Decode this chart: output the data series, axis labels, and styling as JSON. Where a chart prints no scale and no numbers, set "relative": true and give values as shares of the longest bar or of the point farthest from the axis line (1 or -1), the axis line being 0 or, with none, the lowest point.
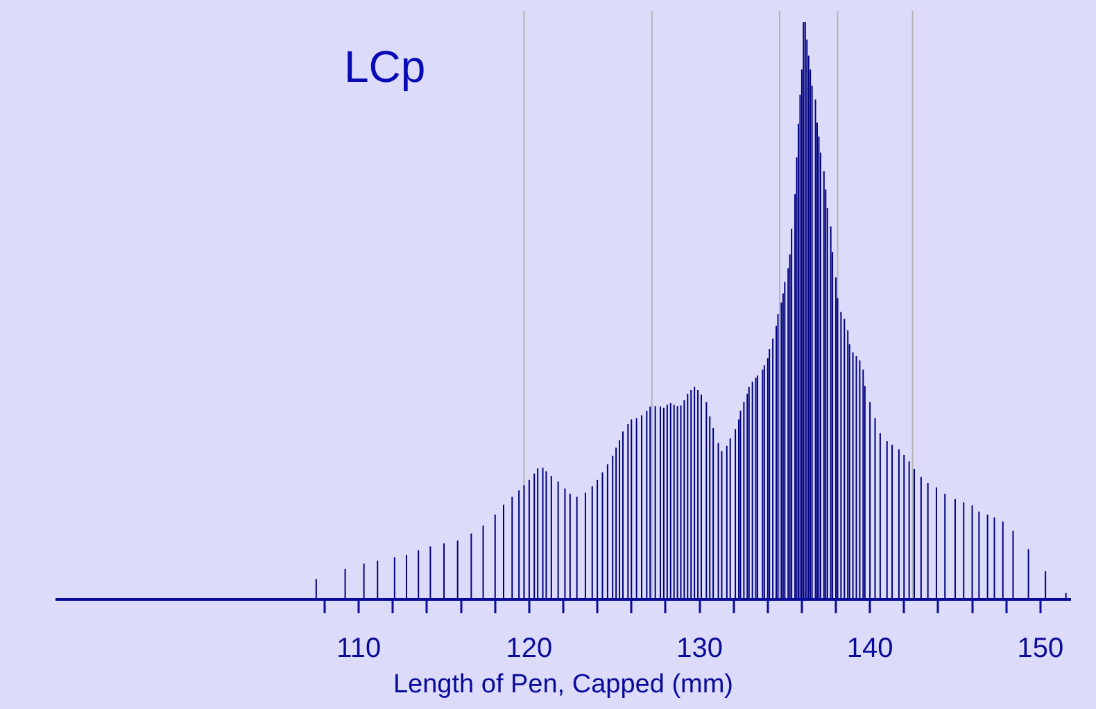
{
  "chart_data": {
    "type": "bar",
    "title": "LCp",
    "xlabel": "Length of Pen, Capped (mm)",
    "relative": true,
    "color": "#000080",
    "legend": false,
    "grid": false,
    "xlim": [
      92.2,
      151.8
    ],
    "xticks": [
      {
        "value": 108,
        "label": null
      },
      110,
      {
        "value": 112,
        "label": null
      },
      {
        "value": 114,
        "label": null
      },
      {
        "value": 116,
        "label": null
      },
      {
        "value": 118,
        "label": null
      },
      120,
      {
        "value": 122,
        "label": null
      },
      {
        "value": 124,
        "label": null
      },
      {
        "value": 126,
        "label": null
      },
      {
        "value": 128,
        "label": null
      },
      130,
      {
        "value": 132,
        "label": null
      },
      {
        "value": 134,
        "label": null
      },
      {
        "value": 136,
        "label": null
      },
      {
        "value": 138,
        "label": null
      },
      140,
      {
        "value": 142,
        "label": null
      },
      {
        "value": 144,
        "label": null
      },
      {
        "value": 146,
        "label": null
      },
      {
        "value": 148,
        "label": null
      },
      150
    ],
    "ref_lines": [
      {
        "axis": "x",
        "value": 119.7,
        "color": "#b4b4b4"
      },
      {
        "axis": "x",
        "value": 127.2,
        "color": "#b4b4b4"
      },
      {
        "axis": "x",
        "value": 134.7,
        "color": "#b4b4b4"
      },
      {
        "axis": "x",
        "value": 138.1,
        "color": "#b4b4b4"
      },
      {
        "axis": "x",
        "value": 142.5,
        "color": "#b4b4b4"
      }
    ],
    "x": [
      104.0,
      107.5,
      109.2,
      110.3,
      111.1,
      112.1,
      112.8,
      113.5,
      114.2,
      115.0,
      115.8,
      116.6,
      117.3,
      118.0,
      118.5,
      119.0,
      119.4,
      119.7,
      120.0,
      120.3,
      120.5,
      120.8,
      121.0,
      121.3,
      121.7,
      122.1,
      122.4,
      122.8,
      123.3,
      123.7,
      124.0,
      124.3,
      124.6,
      124.9,
      125.1,
      125.3,
      125.5,
      125.8,
      126.0,
      126.3,
      126.6,
      126.9,
      127.1,
      127.4,
      127.7,
      127.9,
      128.1,
      128.3,
      128.5,
      128.7,
      128.9,
      129.1,
      129.3,
      129.5,
      129.7,
      129.9,
      130.1,
      130.4,
      130.6,
      130.8,
      131.1,
      131.3,
      131.6,
      131.8,
      132.1,
      132.3,
      132.4,
      132.6,
      132.8,
      132.9,
      133.1,
      133.3,
      133.4,
      133.7,
      133.8,
      134.0,
      134.1,
      134.3,
      134.5,
      134.6,
      134.8,
      134.9,
      135.0,
      135.2,
      135.3,
      135.4,
      135.6,
      135.7,
      135.8,
      135.9,
      136.0,
      136.1,
      136.2,
      136.3,
      136.4,
      136.5,
      136.6,
      136.8,
      136.9,
      137.0,
      137.1,
      137.3,
      137.4,
      137.5,
      137.7,
      137.8,
      138.0,
      138.1,
      138.3,
      138.5,
      138.7,
      138.8,
      139.0,
      139.2,
      139.4,
      139.6,
      139.7,
      140.0,
      140.3,
      140.6,
      141.0,
      141.3,
      141.7,
      142.0,
      142.3,
      142.6,
      143.0,
      143.4,
      143.9,
      144.4,
      145.0,
      145.5,
      146.0,
      146.4,
      146.9,
      147.3,
      147.8,
      148.4,
      149.3,
      150.3,
      151.5
    ],
    "values": [
      0.002,
      0.035,
      0.053,
      0.062,
      0.067,
      0.073,
      0.077,
      0.085,
      0.092,
      0.097,
      0.102,
      0.114,
      0.128,
      0.147,
      0.164,
      0.178,
      0.189,
      0.198,
      0.207,
      0.218,
      0.227,
      0.228,
      0.222,
      0.214,
      0.204,
      0.192,
      0.183,
      0.178,
      0.185,
      0.196,
      0.207,
      0.22,
      0.234,
      0.249,
      0.263,
      0.276,
      0.291,
      0.304,
      0.312,
      0.314,
      0.319,
      0.327,
      0.334,
      0.335,
      0.334,
      0.332,
      0.337,
      0.34,
      0.337,
      0.335,
      0.336,
      0.345,
      0.356,
      0.363,
      0.368,
      0.363,
      0.355,
      0.342,
      0.317,
      0.297,
      0.271,
      0.257,
      0.266,
      0.279,
      0.295,
      0.312,
      0.327,
      0.342,
      0.356,
      0.368,
      0.377,
      0.384,
      0.388,
      0.398,
      0.406,
      0.418,
      0.434,
      0.452,
      0.474,
      0.494,
      0.514,
      0.53,
      0.55,
      0.574,
      0.598,
      0.642,
      0.702,
      0.766,
      0.824,
      0.874,
      0.918,
      1,
      1,
      0.97,
      0.942,
      0.918,
      0.89,
      0.866,
      0.826,
      0.802,
      0.774,
      0.742,
      0.71,
      0.678,
      0.646,
      0.602,
      0.558,
      0.522,
      0.498,
      0.486,
      0.466,
      0.442,
      0.428,
      0.422,
      0.414,
      0.398,
      0.37,
      0.342,
      0.314,
      0.288,
      0.274,
      0.268,
      0.26,
      0.25,
      0.239,
      0.226,
      0.212,
      0.202,
      0.194,
      0.183,
      0.174,
      0.168,
      0.163,
      0.152,
      0.147,
      0.142,
      0.135,
      0.119,
      0.087,
      0.049,
      0.011
    ]
  }
}
